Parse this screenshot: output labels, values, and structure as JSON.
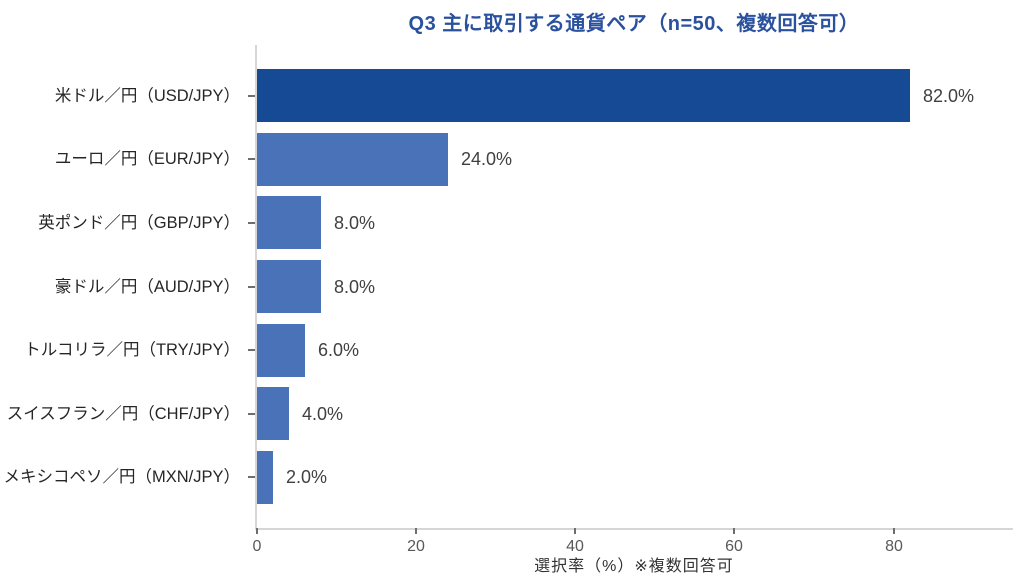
{
  "chart": {
    "title": "Q3 主に取引する通貨ペア（n=50、複数回答可）",
    "xlabel": "選択率（%）※複数回答可"
  },
  "chart_data": {
    "type": "bar",
    "orientation": "horizontal",
    "title": "Q3 主に取引する通貨ペア（n=50、複数回答可）",
    "categories": [
      "米ドル／円（USD/JPY）",
      "ユーロ／円（EUR/JPY）",
      "英ポンド／円（GBP/JPY）",
      "豪ドル／円（AUD/JPY）",
      "トルコリラ／円（TRY/JPY）",
      "スイスフラン／円（CHF/JPY）",
      "メキシコペソ／円（MXN/JPY）"
    ],
    "values": [
      82.0,
      24.0,
      8.0,
      8.0,
      6.0,
      4.0,
      2.0
    ],
    "value_labels": [
      "82.0%",
      "24.0%",
      "8.0%",
      "8.0%",
      "6.0%",
      "4.0%",
      "2.0%"
    ],
    "xlabel": "選択率（%）※複数回答可",
    "ylabel": "",
    "xlim": [
      0,
      95
    ],
    "xticks": [
      0,
      20,
      40,
      60,
      80
    ],
    "grid": false,
    "legend": false,
    "bar_colors": [
      "#164a94",
      "#4a72b8",
      "#4a72b8",
      "#4a72b8",
      "#4a72b8",
      "#4a72b8",
      "#4a72b8"
    ],
    "colors": {
      "title": "#2a519e",
      "highlight_bar": "#164a94",
      "default_bar": "#4a72b8",
      "axis_line": "#d6d6d6",
      "tick_mark": "#6e6e6e",
      "tick_label": "#595959",
      "category_label": "#262626",
      "value_label": "#404040",
      "xlabel": "#333333"
    }
  }
}
